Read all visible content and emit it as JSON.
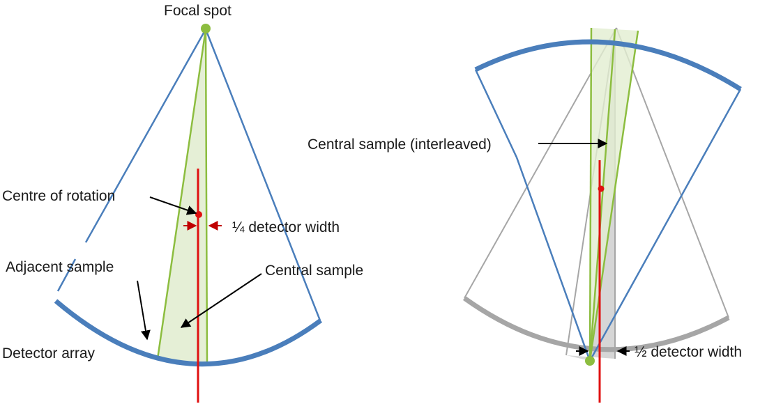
{
  "labels": {
    "focal_spot": "Focal spot",
    "centre_of_rotation": "Centre of rotation",
    "quarter_detector_width": "¼ detector width",
    "adjacent_sample": "Adjacent sample",
    "central_sample": "Central sample",
    "detector_array": "Detector array",
    "central_sample_interleaved": "Central sample (interleaved)",
    "half_detector_width": "½ detector width"
  },
  "colors": {
    "beam_edge": "#4a7ebb",
    "detector": "#4a7ebb",
    "sample_ray": "#8cbd3f",
    "sample_fill": "#e2edd1",
    "rotation_axis": "#e01010",
    "opposed_view": "#a6a6a6",
    "opposed_fill": "#cfcfcf",
    "focal_spot": "#8cbd3f",
    "arrow": "#000000",
    "offset_arrow": "#c00000"
  }
}
